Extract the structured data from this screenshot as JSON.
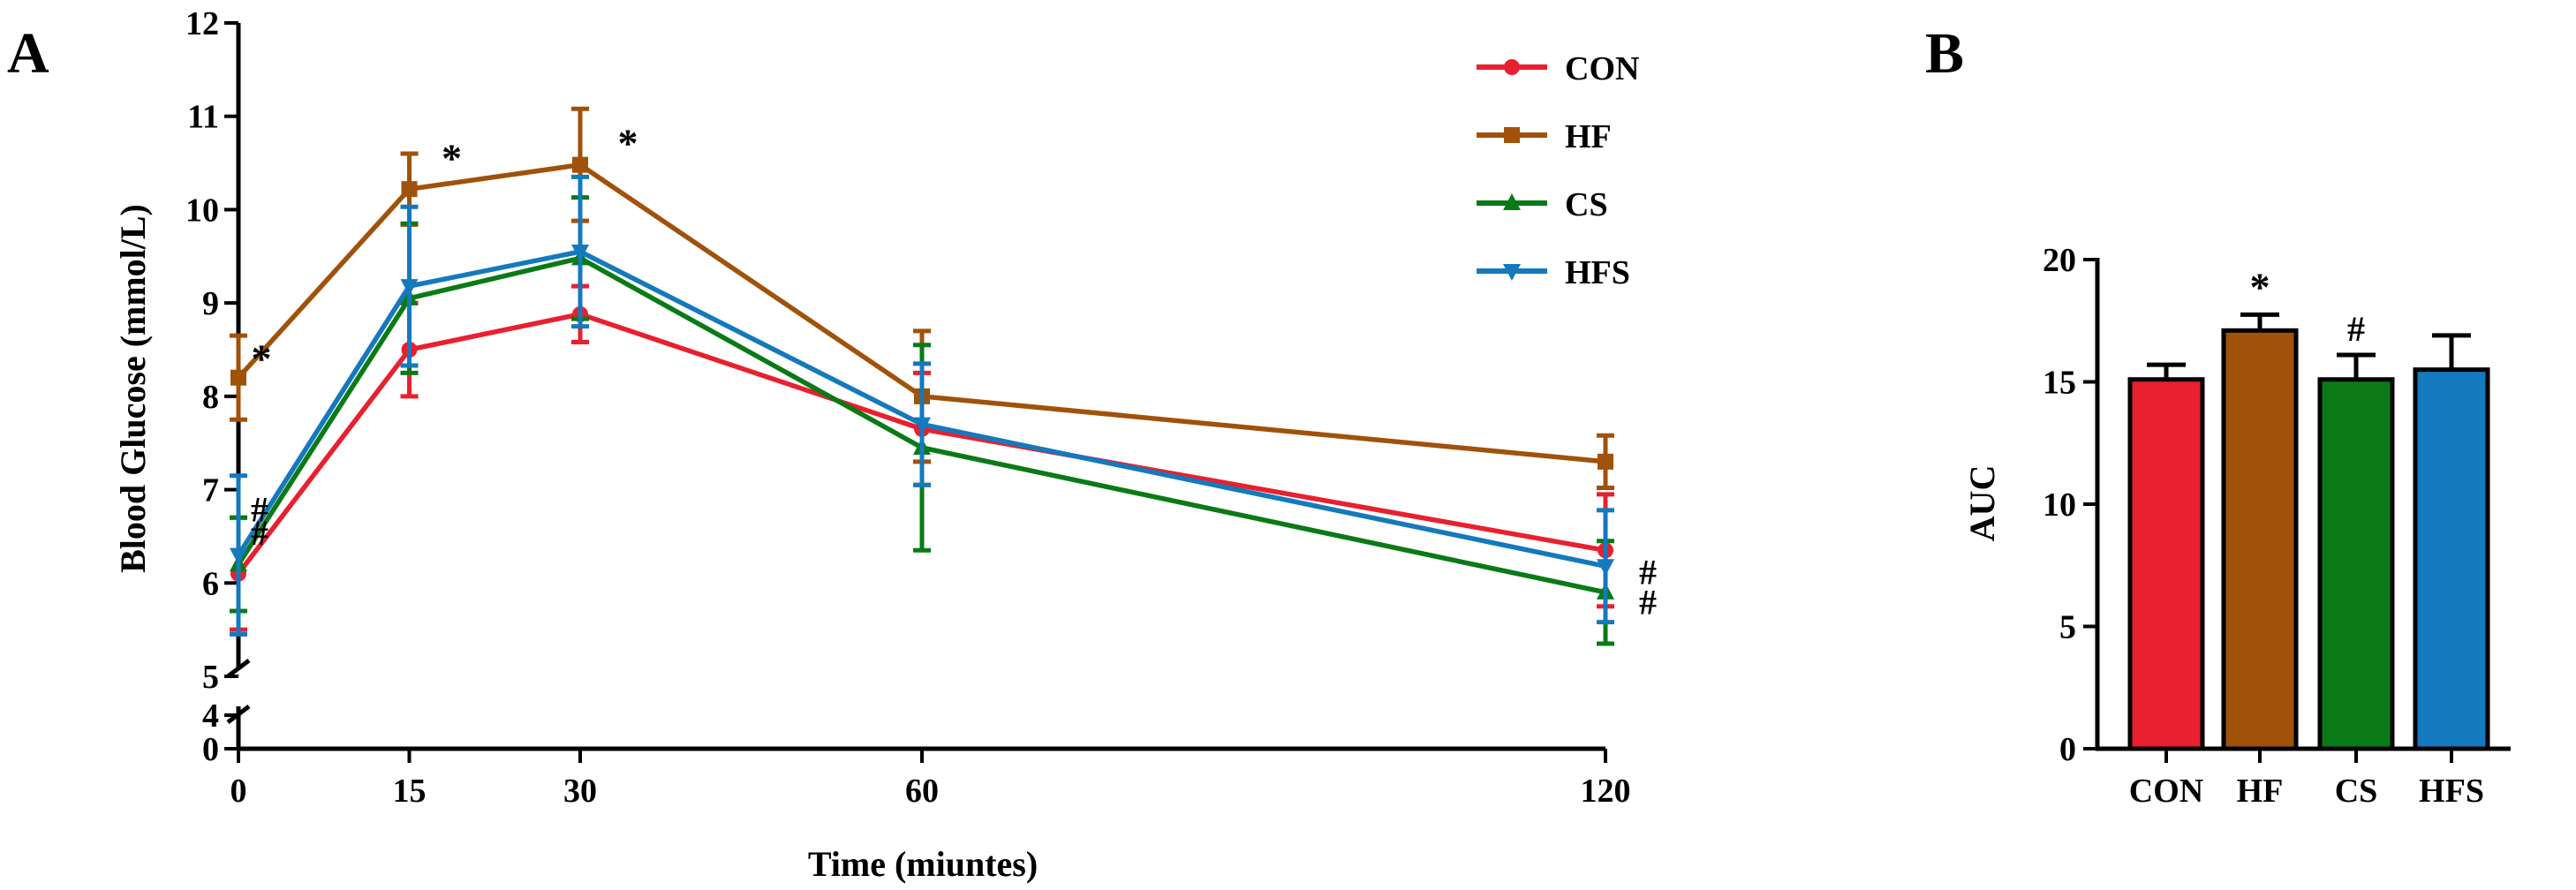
{
  "chart_data": [
    {
      "panel": "A",
      "type": "line",
      "title": "",
      "xlabel": "Time (miuntes)",
      "ylabel": "Blood Glucose (mmol/L)",
      "x": [
        0,
        15,
        30,
        60,
        120
      ],
      "x_tick_labels": [
        "0",
        "15",
        "30",
        "60",
        "120"
      ],
      "y_ticks": [
        0,
        4,
        5,
        6,
        7,
        8,
        9,
        10,
        11,
        12
      ],
      "y_tick_labels": [
        "0",
        "4",
        "5",
        "6",
        "7",
        "8",
        "9",
        "10",
        "11",
        "12"
      ],
      "ylim": [
        0,
        12
      ],
      "y_axis_break": [
        0,
        5
      ],
      "legend": [
        "CON",
        "HF",
        "CS",
        "HFS"
      ],
      "legend_position": "top-right",
      "series": [
        {
          "name": "CON",
          "color": "#e8202f",
          "marker": "circle",
          "values": [
            6.1,
            8.5,
            8.88,
            7.65,
            6.35
          ],
          "errors": [
            0.6,
            0.5,
            0.3,
            0.6,
            0.6
          ]
        },
        {
          "name": "HF",
          "color": "#a0520a",
          "marker": "square",
          "values": [
            8.2,
            10.22,
            10.48,
            8.0,
            7.3
          ],
          "errors": [
            0.45,
            0.38,
            0.6,
            0.7,
            0.28
          ]
        },
        {
          "name": "CS",
          "color": "#0a7a16",
          "marker": "triangle-up",
          "values": [
            6.2,
            9.05,
            9.48,
            7.45,
            5.9
          ],
          "errors": [
            0.5,
            0.8,
            0.65,
            1.1,
            0.55
          ]
        },
        {
          "name": "HFS",
          "color": "#1479bd",
          "marker": "triangle-down",
          "values": [
            6.3,
            9.18,
            9.55,
            7.7,
            6.18
          ],
          "errors": [
            0.85,
            0.85,
            0.8,
            0.65,
            0.6
          ]
        }
      ],
      "annotations": [
        {
          "text": "*",
          "x": 0,
          "y": 8.45
        },
        {
          "text": "*",
          "x": 15,
          "y": 10.5
        },
        {
          "text": "*",
          "x": 30,
          "y": 10.7
        },
        {
          "text": "#",
          "x": 0,
          "y": 6.85
        },
        {
          "text": "#",
          "x": 0,
          "y": 6.6
        },
        {
          "text": "#",
          "x": 120,
          "y": 6.12
        },
        {
          "text": "#",
          "x": 120,
          "y": 5.8
        }
      ]
    },
    {
      "panel": "B",
      "type": "bar",
      "title": "",
      "xlabel": "",
      "ylabel": "AUC",
      "categories": [
        "CON",
        "HF",
        "CS",
        "HFS"
      ],
      "values": [
        15.1,
        17.1,
        15.1,
        15.5
      ],
      "errors": [
        0.6,
        0.65,
        1.0,
        1.4
      ],
      "colors": [
        "#e8202f",
        "#a0520a",
        "#0a7a16",
        "#1479bd"
      ],
      "y_ticks": [
        0,
        5,
        10,
        15,
        20
      ],
      "y_tick_labels": [
        "0",
        "5",
        "10",
        "15",
        "20"
      ],
      "ylim": [
        0,
        20
      ],
      "annotations": [
        {
          "text": "*",
          "category": "HF"
        },
        {
          "text": "#",
          "category": "CS"
        }
      ]
    }
  ]
}
